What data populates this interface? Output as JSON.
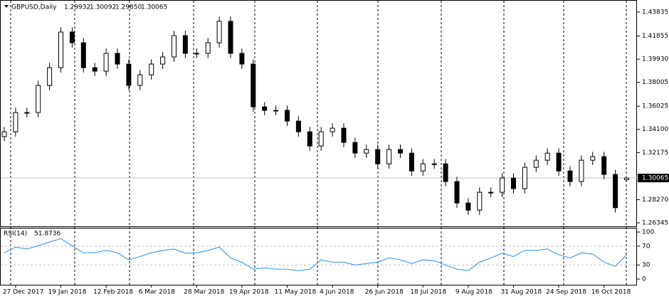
{
  "chart_data": {
    "type": "candlestick",
    "title": "GBPUSD,Daily",
    "ohlc_labels": [
      "1.29932",
      "1.30092",
      "1.29850",
      "1.30065"
    ],
    "categories": [
      null,
      "27 Dec 2017",
      null,
      null,
      null,
      "19 Jan 2018",
      null,
      null,
      null,
      "12 Feb 2018",
      null,
      null,
      null,
      "6 Mar 2018",
      null,
      null,
      null,
      "28 Mar 2018",
      null,
      null,
      null,
      "19 Apr 2018",
      null,
      null,
      null,
      "11 May 2018",
      null,
      null,
      null,
      "4 Jun 2018",
      null,
      null,
      null,
      "26 Jun 2018",
      null,
      null,
      null,
      "18 Jul 2018",
      null,
      null,
      null,
      "9 Aug 2018",
      null,
      null,
      null,
      "31 Aug 2018",
      null,
      null,
      null,
      "24 Sep 2018",
      null,
      null,
      null,
      "16 Oct 2018",
      null,
      null
    ],
    "open": [
      1.335,
      1.339,
      1.355,
      1.355,
      1.3775,
      1.3922,
      1.4218,
      1.4129,
      1.3922,
      1.3893,
      1.4041,
      1.3952,
      1.3775,
      1.3863,
      1.3952,
      1.4011,
      1.4188,
      1.4041,
      1.4041,
      1.4129,
      1.4307,
      1.4041,
      1.3952,
      1.3597,
      1.3568,
      1.3568,
      1.3479,
      1.339,
      1.3272,
      1.339,
      1.342,
      1.3302,
      1.3213,
      1.3243,
      1.3124,
      1.3243,
      1.3213,
      1.3065,
      1.3124,
      1.3124,
      1.2977,
      1.2799,
      1.274,
      1.2888,
      1.2888,
      1.3006,
      1.2918,
      1.3095,
      1.3154,
      1.3213,
      1.3065,
      1.2977,
      1.3154,
      1.3184,
      1.3036,
      1.29932
    ],
    "high": [
      1.343,
      1.359,
      1.359,
      1.3815,
      1.3962,
      1.4258,
      1.4258,
      1.4169,
      1.3962,
      1.4081,
      1.4081,
      1.3992,
      1.3903,
      1.3992,
      1.4051,
      1.4228,
      1.4228,
      1.4081,
      1.4169,
      1.4347,
      1.4347,
      1.4081,
      1.3992,
      1.3637,
      1.3608,
      1.3608,
      1.3519,
      1.343,
      1.343,
      1.346,
      1.346,
      1.3342,
      1.3283,
      1.3283,
      1.3283,
      1.3283,
      1.3253,
      1.3164,
      1.3164,
      1.3164,
      1.3017,
      1.2839,
      1.2928,
      1.2928,
      1.3046,
      1.3046,
      1.3135,
      1.3194,
      1.3253,
      1.3253,
      1.3105,
      1.3194,
      1.3224,
      1.3224,
      1.3076,
      1.30092
    ],
    "low": [
      1.331,
      1.335,
      1.351,
      1.351,
      1.3735,
      1.3882,
      1.4089,
      1.3882,
      1.3853,
      1.3853,
      1.3912,
      1.3735,
      1.3735,
      1.3823,
      1.3912,
      1.3971,
      1.4001,
      1.4001,
      1.4001,
      1.4089,
      1.4001,
      1.3912,
      1.3557,
      1.3528,
      1.3528,
      1.3439,
      1.335,
      1.3232,
      1.3232,
      1.335,
      1.3262,
      1.3173,
      1.3173,
      1.3084,
      1.3084,
      1.3173,
      1.3025,
      1.3025,
      1.3084,
      1.2937,
      1.2759,
      1.27,
      1.27,
      1.2848,
      1.2848,
      1.2878,
      1.2878,
      1.3055,
      1.3114,
      1.3025,
      1.2937,
      1.2937,
      1.3114,
      1.2996,
      1.272,
      1.2985
    ],
    "close": [
      1.339,
      1.355,
      1.355,
      1.3775,
      1.3922,
      1.4218,
      1.4129,
      1.3922,
      1.3893,
      1.4041,
      1.3952,
      1.3775,
      1.3863,
      1.3952,
      1.4011,
      1.4188,
      1.4041,
      1.4041,
      1.4129,
      1.4307,
      1.4041,
      1.3952,
      1.3597,
      1.3568,
      1.3568,
      1.3479,
      1.339,
      1.3272,
      1.339,
      1.342,
      1.3302,
      1.3213,
      1.3243,
      1.3124,
      1.3243,
      1.3213,
      1.3065,
      1.3124,
      1.3124,
      1.2977,
      1.2799,
      1.274,
      1.2888,
      1.2888,
      1.3006,
      1.2918,
      1.3095,
      1.3154,
      1.3213,
      1.3065,
      1.2977,
      1.3154,
      1.3184,
      1.3036,
      1.276,
      1.30065
    ],
    "ylim": [
      1.2605,
      1.4472
    ],
    "yticks": [
      1.43835,
      1.41855,
      {
        "value": 1.3993,
        "label": "1.39930"
      },
      1.38005,
      1.36025,
      {
        "value": 1.341,
        "label": "1.34100"
      },
      1.32175,
      {
        "value": 1.2827,
        "label": "1.28270"
      },
      1.26345
    ],
    "current": {
      "value": 1.30065,
      "label": "1.30065"
    },
    "rsi": {
      "title": "RSI(14)",
      "color": "#1e90ff",
      "ylim": [
        0,
        100
      ],
      "yticks": [
        100,
        70,
        30,
        0
      ],
      "levels": [
        70,
        30
      ],
      "values": [
        56,
        68,
        64,
        71,
        79,
        86,
        71,
        56,
        56,
        61,
        56,
        41,
        48,
        56,
        61,
        64,
        55,
        56,
        61,
        68,
        45,
        36,
        21,
        24,
        21,
        21,
        18,
        21,
        41,
        36,
        36,
        30,
        33,
        36,
        45,
        41,
        33,
        41,
        39,
        30,
        21,
        18,
        36,
        45,
        55,
        48,
        61,
        61,
        64,
        52,
        45,
        56,
        53,
        36,
        27,
        51.8736
      ]
    }
  }
}
